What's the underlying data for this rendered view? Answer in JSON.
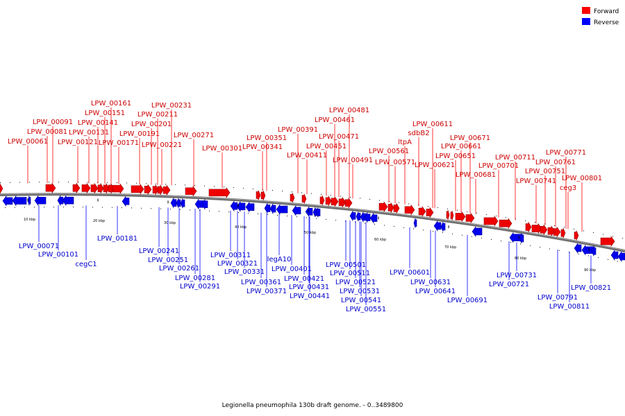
{
  "caption": "Legionella pneumophila 130b draft genome. - 0..3489800",
  "legend": [
    {
      "label": "Forward",
      "color": "#ff0000"
    },
    {
      "label": "Reverse",
      "color": "#0000ff"
    }
  ],
  "ticks": [
    "10 kbp",
    "20 kbp",
    "30 kbp",
    "40 kbp",
    "50 kbp",
    "60 kbp",
    "70 kbp",
    "80 kbp",
    "90 kbp"
  ],
  "forward_genes": [
    "LPW_00061",
    "LPW_00081",
    "LPW_00091",
    "LPW_00121",
    "LPW_00131",
    "LPW_00141",
    "LPW_00151",
    "LPW_00161",
    "LPW_00171",
    "LPW_00191",
    "LPW_00201",
    "LPW_00211",
    "LPW_00221",
    "LPW_00231",
    "LPW_00271",
    "LPW_00301",
    "LPW_00341",
    "LPW_00351",
    "LPW_00391",
    "LPW_00411",
    "LPW_00451",
    "LPW_00461",
    "LPW_00471",
    "LPW_00481",
    "LPW_00491",
    "LPW_00561",
    "LPW_00571",
    "ltpA",
    "sdbB2",
    "LPW_00611",
    "LPW_00621",
    "LPW_00651",
    "LPW_00661",
    "LPW_00671",
    "LPW_00681",
    "LPW_00701",
    "LPW_00711",
    "LPW_00741",
    "LPW_00751",
    "LPW_00761",
    "LPW_00771",
    "ceg3",
    "LPW_00801"
  ],
  "reverse_genes": [
    "LPW_00071",
    "LPW_00101",
    "cegC1",
    "LPW_00181",
    "LPW_00241",
    "LPW_00251",
    "LPW_00261",
    "LPW_00281",
    "LPW_00291",
    "LPW_00311",
    "LPW_00321",
    "LPW_00331",
    "LPW_00361",
    "LPW_00371",
    "legA10",
    "LPW_00401",
    "LPW_00421",
    "LPW_00431",
    "LPW_00441",
    "LPW_00501",
    "LPW_00511",
    "LPW_00521",
    "LPW_00531",
    "LPW_00541",
    "LPW_00551",
    "LPW_00601",
    "LPW_00631",
    "LPW_00641",
    "LPW_00691",
    "LPW_00721",
    "LPW_00731",
    "LPW_00791",
    "LPW_00811",
    "LPW_00821"
  ]
}
